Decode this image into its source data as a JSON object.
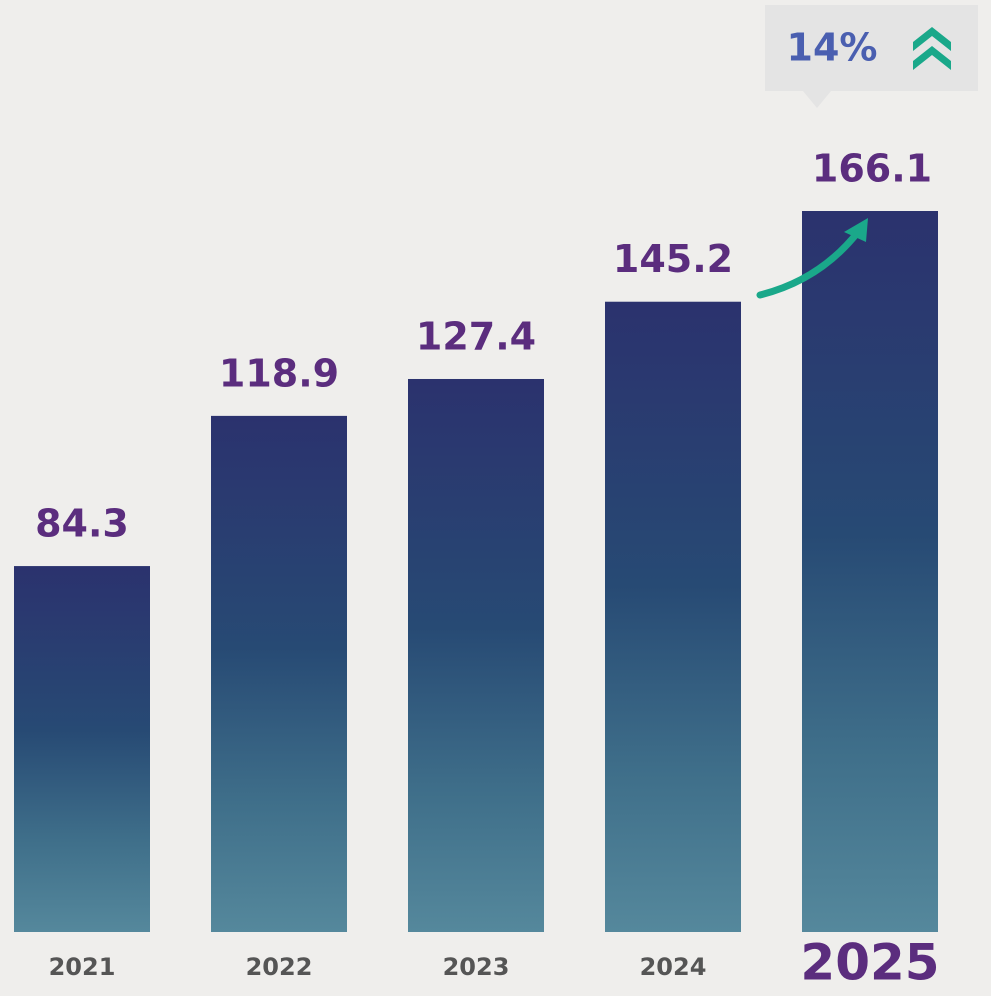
{
  "chart_data": {
    "type": "bar",
    "categories": [
      "2021",
      "2022",
      "2023",
      "2024",
      "2025"
    ],
    "values": [
      84.3,
      118.9,
      127.4,
      145.2,
      166.1
    ],
    "annotation": "14%",
    "value_label_color": "#5b2d7e",
    "annotation_color": "#4a5fb0"
  }
}
